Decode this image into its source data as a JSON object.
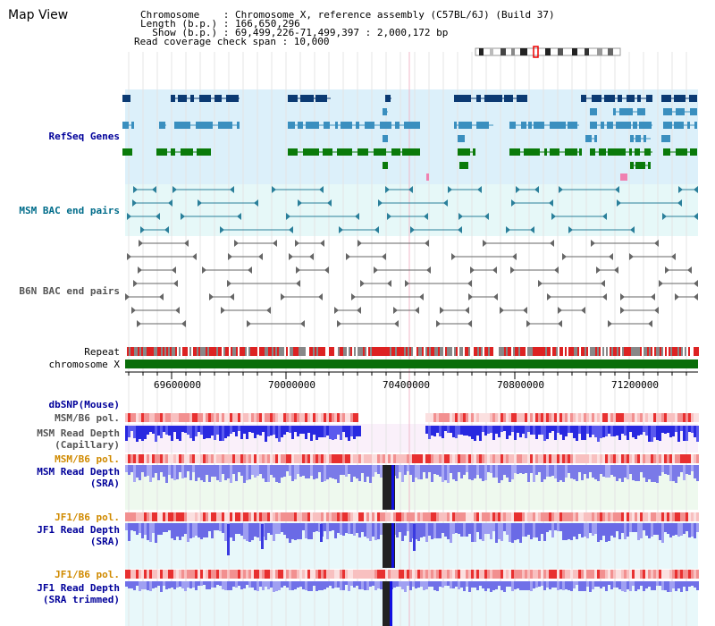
{
  "app": {
    "title": "Map View"
  },
  "info": {
    "line1": "Chromosome    : Chromosome X, reference assembly (C57BL/6J) (Build 37)",
    "line2": "Length (b.p.) : 166,650,296",
    "line3": "  Show (b.p.) : 69,499,226-71,499,397 : 2,000,172 bp",
    "line4": "Read coverage check span : 10,000"
  },
  "tracks": {
    "refseq": "RefSeq Genes",
    "msm_bac": "MSM BAC end pairs",
    "b6n_bac": "B6N BAC end pairs",
    "repeat": "Repeat",
    "chromosome": "chromosome X",
    "dbsnp": "dbSNP(Mouse)",
    "msm_b6_pol_1": "MSM/B6 pol.",
    "msm_depth_cap": "MSM Read Depth\n(Capillary)",
    "msm_b6_pol_2": "MSM/B6 pol.",
    "msm_depth_sra": "MSM Read Depth\n(SRA)",
    "jf1_b6_pol_1": "JF1/B6 pol.",
    "jf1_depth_sra": "JF1 Read Depth\n(SRA)",
    "jf1_b6_pol_2": "JF1/B6 pol.",
    "jf1_depth_trim": "JF1 Read Depth\n(SRA trimmed)"
  },
  "axis": {
    "ticks": [
      "69600000",
      "70000000",
      "70400000",
      "70800000",
      "71200000"
    ]
  },
  "colors": {
    "refseq_bg": "#dcf0fa",
    "bac_bg": "#e6f8f8",
    "gene_navy": "#0b3a73",
    "gene_blue": "#3a8fbf",
    "gene_green": "#0a7a0a",
    "chrom_green": "#0a6e0a",
    "label_navy": "#00009a",
    "label_teal": "#006c8a",
    "label_gray": "#555555",
    "label_orange": "#d08a00",
    "depth_blue": "#2828e0",
    "depth_light": "#8f8ff0"
  }
}
